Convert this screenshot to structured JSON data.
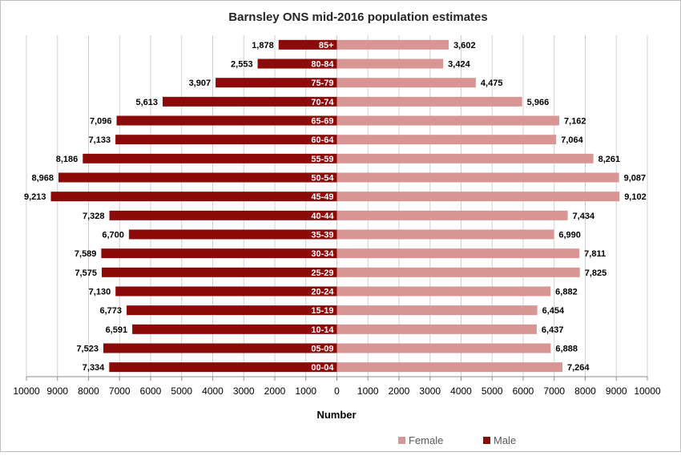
{
  "chart_data": {
    "type": "bar",
    "orientation": "horizontal",
    "title": "Barnsley ONS mid-2016 population estimates",
    "xlabel": "Number",
    "ylabel": "",
    "xlim": [
      -10000,
      10000
    ],
    "x_ticks": [
      "10000",
      "9000",
      "8000",
      "7000",
      "6000",
      "5000",
      "4000",
      "3000",
      "2000",
      "1000",
      "0",
      "1000",
      "2000",
      "3000",
      "4000",
      "5000",
      "6000",
      "7000",
      "8000",
      "9000",
      "10000"
    ],
    "grid": "vertical",
    "legend_position": "bottom-right",
    "categories": [
      "00-04",
      "05-09",
      "10-14",
      "15-19",
      "20-24",
      "25-29",
      "30-34",
      "35-39",
      "40-44",
      "45-49",
      "50-54",
      "55-59",
      "60-64",
      "65-69",
      "70-74",
      "75-79",
      "80-84",
      "85+"
    ],
    "series": [
      {
        "name": "Male",
        "color": "#8b0a0a",
        "values": [
          7334,
          7523,
          6591,
          6773,
          7130,
          7575,
          7589,
          6700,
          7328,
          9213,
          8968,
          8186,
          7133,
          7096,
          5613,
          3907,
          2553,
          1878
        ],
        "labels": [
          "7,334",
          "7,523",
          "6,591",
          "6,773",
          "7,130",
          "7,575",
          "7,589",
          "6,700",
          "7,328",
          "9,213",
          "8,968",
          "8,186",
          "7,133",
          "7,096",
          "5,613",
          "3,907",
          "2,553",
          "1,878"
        ]
      },
      {
        "name": "Female",
        "color": "#d99594",
        "values": [
          7264,
          6888,
          6437,
          6454,
          6882,
          7825,
          7811,
          6990,
          7434,
          9102,
          9087,
          8261,
          7064,
          7162,
          5966,
          4475,
          3424,
          3602
        ],
        "labels": [
          "7,264",
          "6,888",
          "6,437",
          "6,454",
          "6,882",
          "7,825",
          "7,811",
          "6,990",
          "7,434",
          "9,102",
          "9,087",
          "8,261",
          "7,064",
          "7,162",
          "5,966",
          "4,475",
          "3,424",
          "3,602"
        ]
      }
    ]
  }
}
